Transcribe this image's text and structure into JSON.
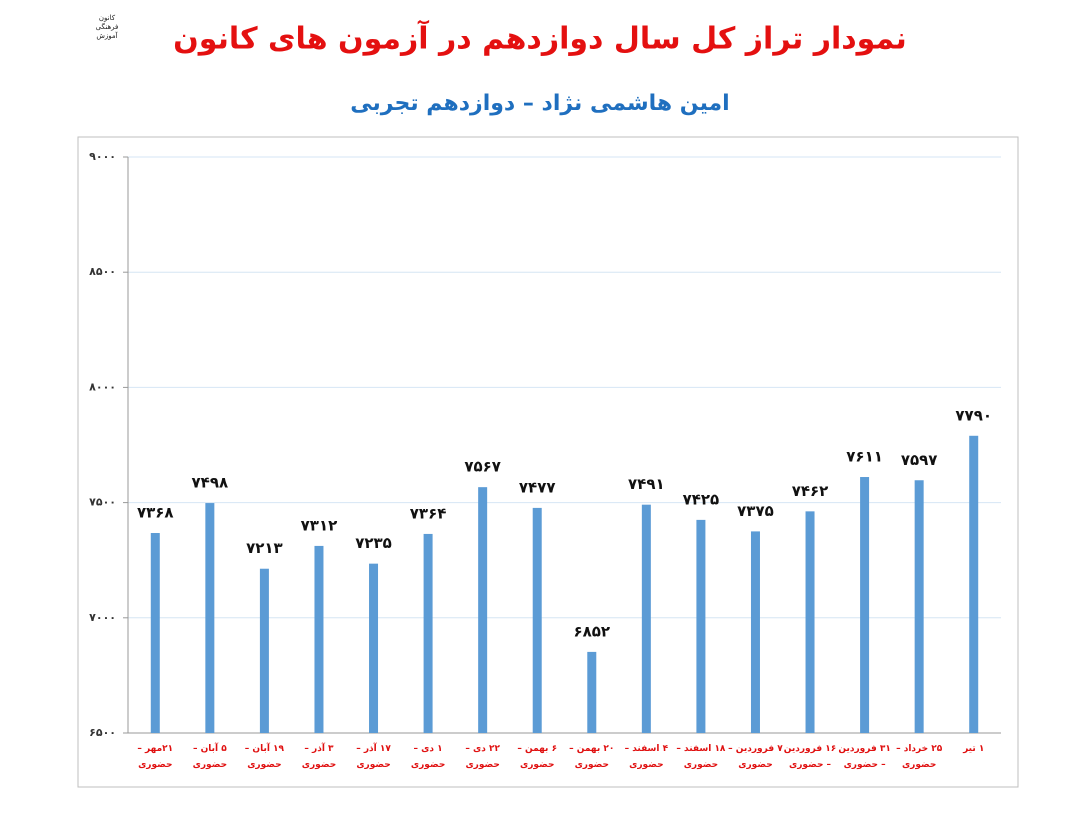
{
  "chart_data": {
    "type": "bar",
    "logo": "کانون\nفرهنگی\nآموزش",
    "title": "نمودار تراز کل سال دوازدهم در آزمون های کانون",
    "subtitle": "امین هاشمی نژاد – دوازدهم تجربی",
    "categories": [
      "۲۱مهر –\nحضوری",
      "۵ آبان –\nحضوری",
      "۱۹ آبان –\nحضوری",
      "۳ آذر –\nحضوری",
      "۱۷ آذر –\nحضوری",
      "۱ دی –\nحضوری",
      "۲۲ دی –\nحضوری",
      "۶ بهمن –\nحضوری",
      "۲۰ بهمن –\nحضوری",
      "۴ اسفند –\nحضوری",
      "۱۸ اسفند –\nحضوری",
      "۷ فروردین –\nحضوری",
      "۱۶ فروردین\n– حضوری",
      "۳۱ فروردین\n– حضوری",
      "۲۵ خرداد –\nحضوری",
      "۱ تیر"
    ],
    "values": [
      7368,
      7498,
      7213,
      7312,
      7235,
      7364,
      7567,
      7477,
      6852,
      7491,
      7425,
      7375,
      7462,
      7611,
      7597,
      7790
    ],
    "value_labels": [
      "۷۳۶۸",
      "۷۴۹۸",
      "۷۲۱۳",
      "۷۳۱۲",
      "۷۲۳۵",
      "۷۳۶۴",
      "۷۵۶۷",
      "۷۴۷۷",
      "۶۸۵۲",
      "۷۴۹۱",
      "۷۴۲۵",
      "۷۳۷۵",
      "۷۴۶۲",
      "۷۶۱۱",
      "۷۵۹۷",
      "۷۷۹۰"
    ],
    "color": "#5b9bd5",
    "ylim": [
      6500,
      9000
    ],
    "yticks": [
      {
        "value": 6500,
        "label": "۶۵۰۰"
      },
      {
        "value": 7000,
        "label": "۷۰۰۰"
      },
      {
        "value": 7500,
        "label": "۷۵۰۰"
      },
      {
        "value": 8000,
        "label": "۸۰۰۰"
      },
      {
        "value": 8500,
        "label": "۸۵۰۰"
      },
      {
        "value": 9000,
        "label": "۹۰۰۰"
      }
    ],
    "grid": true
  }
}
